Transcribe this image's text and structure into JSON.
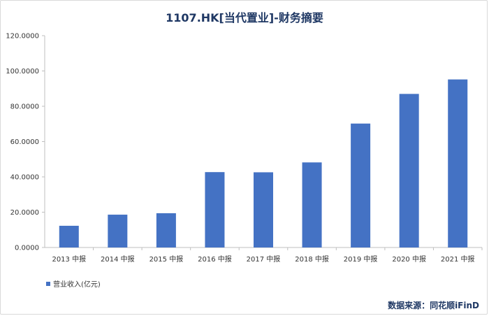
{
  "chart_data": {
    "type": "bar",
    "title": "1107.HK[当代置业]-财务摘要",
    "categories": [
      "2013 中报",
      "2014 中报",
      "2015 中报",
      "2016 中报",
      "2017 中报",
      "2018 中报",
      "2019 中报",
      "2020 中报",
      "2021 中报"
    ],
    "series": [
      {
        "name": "营业收入(亿元)",
        "values": [
          12.3,
          18.6,
          19.4,
          42.7,
          42.6,
          48.2,
          70.2,
          87.0,
          95.2
        ],
        "color": "#4472c4"
      }
    ],
    "ylim": [
      0,
      120
    ],
    "yticks": [
      "0.0000",
      "20.0000",
      "40.0000",
      "60.0000",
      "80.0000",
      "100.0000",
      "120.0000"
    ],
    "grid": false,
    "legend_position": "bottom-left"
  },
  "source": "数据来源：同花顺iFinD"
}
